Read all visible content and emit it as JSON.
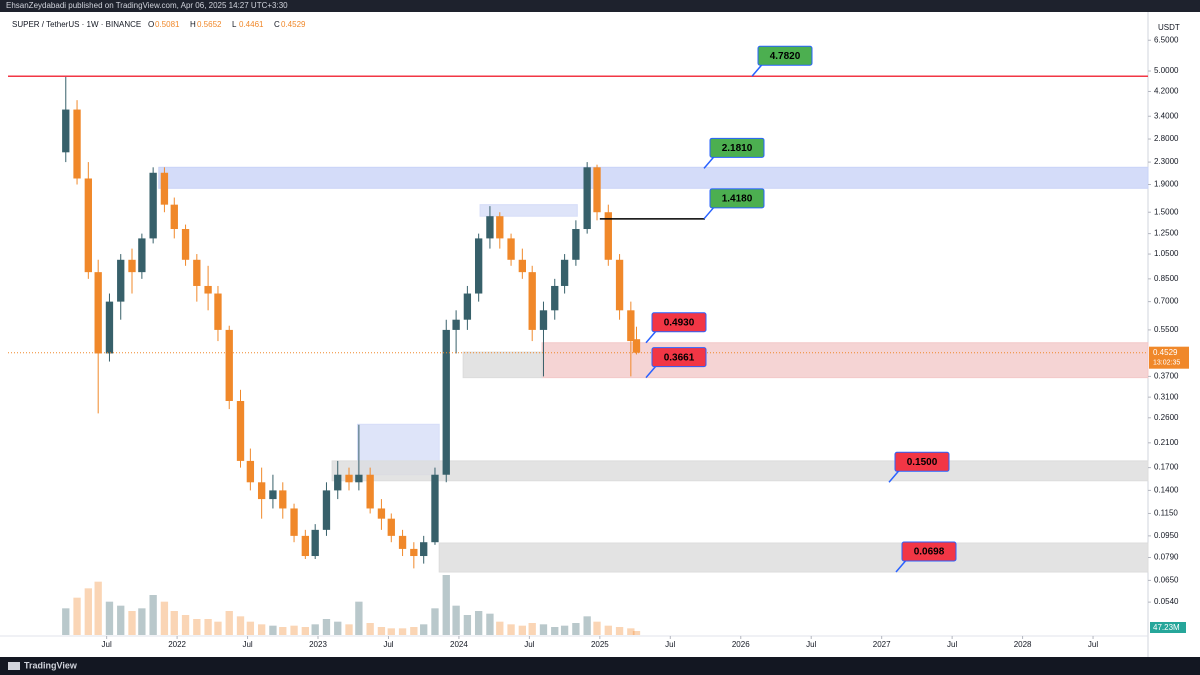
{
  "chart_data": {
    "type": "candlestick",
    "published": "EhsanZeydabadi published on TradingView.com, Apr 06, 2025 14:27 UTC+3:30",
    "title": "SUPER / TetherUS · 1W · BINANCE",
    "ohlc_keys": [
      "O",
      "H",
      "L",
      "C"
    ],
    "currency": "USDT",
    "countdown": "13:02:35",
    "volume_label": "47.23M",
    "brand": "TradingView",
    "log_scale": true,
    "up_color": "#37606a",
    "down_color": "#f0882a",
    "ylim": [
      0.0408,
      8.27
    ],
    "yticks": [
      {
        "value": 6.5,
        "label": "6.5000"
      },
      {
        "value": 5,
        "label": "5.0000"
      },
      {
        "value": 4.2,
        "label": "4.2000"
      },
      {
        "value": 3.4,
        "label": "3.4000"
      },
      {
        "value": 2.8,
        "label": "2.8000"
      },
      {
        "value": 2.3,
        "label": "2.3000"
      },
      {
        "value": 1.9,
        "label": "1.9000"
      },
      {
        "value": 1.5,
        "label": "1.5000"
      },
      {
        "value": 1.25,
        "label": "1.2500"
      },
      {
        "value": 1.05,
        "label": "1.0500"
      },
      {
        "value": 0.85,
        "label": "0.8500"
      },
      {
        "value": 0.7,
        "label": "0.7000"
      },
      {
        "value": 0.55,
        "label": "0.5500"
      },
      {
        "value": 0.37,
        "label": "0.3700"
      },
      {
        "value": 0.31,
        "label": "0.3100"
      },
      {
        "value": 0.26,
        "label": "0.2600"
      },
      {
        "value": 0.21,
        "label": "0.2100"
      },
      {
        "value": 0.17,
        "label": "0.1700"
      },
      {
        "value": 0.14,
        "label": "0.1400"
      },
      {
        "value": 0.115,
        "label": "0.1150"
      },
      {
        "value": 0.095,
        "label": "0.0950"
      },
      {
        "value": 0.079,
        "label": "0.0790"
      },
      {
        "value": 0.065,
        "label": "0.0650"
      },
      {
        "value": 0.054,
        "label": "0.0540"
      }
    ],
    "xlim": [
      2020.8,
      2028.89
    ],
    "xticks": [
      {
        "value": 2021.5,
        "label": "Jul"
      },
      {
        "value": 2022,
        "label": "2022"
      },
      {
        "value": 2022.5,
        "label": "Jul"
      },
      {
        "value": 2023,
        "label": "2023"
      },
      {
        "value": 2023.5,
        "label": "Jul"
      },
      {
        "value": 2024,
        "label": "2024"
      },
      {
        "value": 2024.5,
        "label": "Jul"
      },
      {
        "value": 2025,
        "label": "2025"
      },
      {
        "value": 2025.5,
        "label": "Jul"
      },
      {
        "value": 2026,
        "label": "2026"
      },
      {
        "value": 2026.5,
        "label": "Jul"
      },
      {
        "value": 2027,
        "label": "2027"
      },
      {
        "value": 2027.5,
        "label": "Jul"
      },
      {
        "value": 2028,
        "label": "2028"
      },
      {
        "value": 2028.5,
        "label": "Jul"
      }
    ],
    "candles": [
      {
        "x": 2021.21,
        "open": 2.5,
        "high": 4.78,
        "low": 2.3,
        "close": 3.6,
        "volume": 20
      },
      {
        "x": 2021.29,
        "open": 3.6,
        "high": 3.9,
        "low": 1.9,
        "close": 2.0,
        "volume": 28
      },
      {
        "x": 2021.37,
        "open": 2.0,
        "high": 2.3,
        "low": 0.85,
        "close": 0.9,
        "volume": 35
      },
      {
        "x": 2021.44,
        "open": 0.9,
        "high": 1.0,
        "low": 0.27,
        "close": 0.45,
        "volume": 40
      },
      {
        "x": 2021.52,
        "open": 0.45,
        "high": 0.75,
        "low": 0.42,
        "close": 0.7,
        "volume": 25
      },
      {
        "x": 2021.6,
        "open": 0.7,
        "high": 1.05,
        "low": 0.6,
        "close": 1.0,
        "volume": 22
      },
      {
        "x": 2021.68,
        "open": 1.0,
        "high": 1.1,
        "low": 0.75,
        "close": 0.9,
        "volume": 18
      },
      {
        "x": 2021.75,
        "open": 0.9,
        "high": 1.25,
        "low": 0.85,
        "close": 1.2,
        "volume": 20
      },
      {
        "x": 2021.83,
        "open": 1.2,
        "high": 2.2,
        "low": 1.15,
        "close": 2.1,
        "volume": 30
      },
      {
        "x": 2021.91,
        "open": 2.1,
        "high": 2.2,
        "low": 1.5,
        "close": 1.6,
        "volume": 25
      },
      {
        "x": 2021.98,
        "open": 1.6,
        "high": 1.7,
        "low": 1.2,
        "close": 1.3,
        "volume": 18
      },
      {
        "x": 2022.06,
        "open": 1.3,
        "high": 1.35,
        "low": 0.95,
        "close": 1.0,
        "volume": 15
      },
      {
        "x": 2022.14,
        "open": 1.0,
        "high": 1.05,
        "low": 0.7,
        "close": 0.8,
        "volume": 12
      },
      {
        "x": 2022.22,
        "open": 0.8,
        "high": 0.95,
        "low": 0.65,
        "close": 0.75,
        "volume": 12
      },
      {
        "x": 2022.29,
        "open": 0.75,
        "high": 0.8,
        "low": 0.5,
        "close": 0.55,
        "volume": 10
      },
      {
        "x": 2022.37,
        "open": 0.55,
        "high": 0.57,
        "low": 0.28,
        "close": 0.3,
        "volume": 18
      },
      {
        "x": 2022.45,
        "open": 0.3,
        "high": 0.33,
        "low": 0.17,
        "close": 0.18,
        "volume": 14
      },
      {
        "x": 2022.52,
        "open": 0.18,
        "high": 0.2,
        "low": 0.14,
        "close": 0.15,
        "volume": 10
      },
      {
        "x": 2022.6,
        "open": 0.15,
        "high": 0.17,
        "low": 0.11,
        "close": 0.13,
        "volume": 8
      },
      {
        "x": 2022.68,
        "open": 0.13,
        "high": 0.16,
        "low": 0.12,
        "close": 0.14,
        "volume": 7
      },
      {
        "x": 2022.75,
        "open": 0.14,
        "high": 0.15,
        "low": 0.11,
        "close": 0.12,
        "volume": 6
      },
      {
        "x": 2022.83,
        "open": 0.12,
        "high": 0.125,
        "low": 0.09,
        "close": 0.095,
        "volume": 7
      },
      {
        "x": 2022.91,
        "open": 0.095,
        "high": 0.1,
        "low": 0.078,
        "close": 0.08,
        "volume": 6
      },
      {
        "x": 2022.98,
        "open": 0.08,
        "high": 0.105,
        "low": 0.078,
        "close": 0.1,
        "volume": 8
      },
      {
        "x": 2023.06,
        "open": 0.1,
        "high": 0.15,
        "low": 0.095,
        "close": 0.14,
        "volume": 12
      },
      {
        "x": 2023.14,
        "open": 0.14,
        "high": 0.18,
        "low": 0.13,
        "close": 0.16,
        "volume": 10
      },
      {
        "x": 2023.22,
        "open": 0.16,
        "high": 0.17,
        "low": 0.14,
        "close": 0.15,
        "volume": 8
      },
      {
        "x": 2023.29,
        "open": 0.15,
        "high": 0.245,
        "low": 0.14,
        "close": 0.16,
        "volume": 25
      },
      {
        "x": 2023.37,
        "open": 0.16,
        "high": 0.17,
        "low": 0.115,
        "close": 0.12,
        "volume": 9
      },
      {
        "x": 2023.45,
        "open": 0.12,
        "high": 0.13,
        "low": 0.1,
        "close": 0.11,
        "volume": 6
      },
      {
        "x": 2023.52,
        "open": 0.11,
        "high": 0.115,
        "low": 0.09,
        "close": 0.095,
        "volume": 5
      },
      {
        "x": 2023.6,
        "open": 0.095,
        "high": 0.1,
        "low": 0.08,
        "close": 0.085,
        "volume": 5
      },
      {
        "x": 2023.68,
        "open": 0.085,
        "high": 0.09,
        "low": 0.072,
        "close": 0.08,
        "volume": 6
      },
      {
        "x": 2023.75,
        "open": 0.08,
        "high": 0.095,
        "low": 0.075,
        "close": 0.09,
        "volume": 8
      },
      {
        "x": 2023.83,
        "open": 0.09,
        "high": 0.17,
        "low": 0.088,
        "close": 0.16,
        "volume": 20
      },
      {
        "x": 2023.91,
        "open": 0.16,
        "high": 0.6,
        "low": 0.15,
        "close": 0.55,
        "volume": 45
      },
      {
        "x": 2023.98,
        "open": 0.55,
        "high": 0.65,
        "low": 0.45,
        "close": 0.6,
        "volume": 22
      },
      {
        "x": 2024.06,
        "open": 0.6,
        "high": 0.8,
        "low": 0.55,
        "close": 0.75,
        "volume": 15
      },
      {
        "x": 2024.14,
        "open": 0.75,
        "high": 1.25,
        "low": 0.7,
        "close": 1.2,
        "volume": 18
      },
      {
        "x": 2024.22,
        "open": 1.2,
        "high": 1.58,
        "low": 1.1,
        "close": 1.45,
        "volume": 16
      },
      {
        "x": 2024.29,
        "open": 1.45,
        "high": 1.5,
        "low": 1.1,
        "close": 1.2,
        "volume": 10
      },
      {
        "x": 2024.37,
        "open": 1.2,
        "high": 1.25,
        "low": 0.95,
        "close": 1.0,
        "volume": 8
      },
      {
        "x": 2024.45,
        "open": 1.0,
        "high": 1.1,
        "low": 0.85,
        "close": 0.9,
        "volume": 7
      },
      {
        "x": 2024.52,
        "open": 0.9,
        "high": 0.95,
        "low": 0.5,
        "close": 0.55,
        "volume": 9
      },
      {
        "x": 2024.6,
        "open": 0.55,
        "high": 0.7,
        "low": 0.37,
        "close": 0.65,
        "volume": 8
      },
      {
        "x": 2024.68,
        "open": 0.65,
        "high": 0.85,
        "low": 0.6,
        "close": 0.8,
        "volume": 6
      },
      {
        "x": 2024.75,
        "open": 0.8,
        "high": 1.05,
        "low": 0.75,
        "close": 1.0,
        "volume": 7
      },
      {
        "x": 2024.83,
        "open": 1.0,
        "high": 1.4,
        "low": 0.95,
        "close": 1.3,
        "volume": 9
      },
      {
        "x": 2024.91,
        "open": 1.3,
        "high": 2.3,
        "low": 1.25,
        "close": 2.2,
        "volume": 14
      },
      {
        "x": 2024.98,
        "open": 2.2,
        "high": 2.25,
        "low": 1.4,
        "close": 1.5,
        "volume": 10
      },
      {
        "x": 2025.06,
        "open": 1.5,
        "high": 1.6,
        "low": 0.95,
        "close": 1.0,
        "volume": 7
      },
      {
        "x": 2025.14,
        "open": 1.0,
        "high": 1.05,
        "low": 0.6,
        "close": 0.65,
        "volume": 6
      },
      {
        "x": 2025.22,
        "open": 0.65,
        "high": 0.7,
        "low": 0.37,
        "close": 0.5,
        "volume": 5
      },
      {
        "x": 2025.26,
        "open": 0.5081,
        "high": 0.5652,
        "low": 0.4461,
        "close": 0.4529,
        "volume": 3
      }
    ],
    "zones": [
      {
        "x0": 2021.87,
        "x1": 2028.89,
        "top": 2.2,
        "bottom": 1.84,
        "color": "#c9d3f7"
      },
      {
        "x0": 2024.15,
        "x1": 2024.84,
        "top": 1.6,
        "bottom": 1.45,
        "color": "#d6ddf8"
      },
      {
        "x0": 2024.59,
        "x1": 2028.89,
        "top": 0.493,
        "bottom": 0.3661,
        "color": "#f3c9c9"
      },
      {
        "x0": 2024.03,
        "x1": 2024.59,
        "top": 0.455,
        "bottom": 0.3661,
        "color": "#dcdcdc"
      },
      {
        "x0": 2023.28,
        "x1": 2023.86,
        "top": 0.246,
        "bottom": 0.16,
        "color": "#d6ddf8"
      },
      {
        "x0": 2023.1,
        "x1": 2028.89,
        "top": 0.18,
        "bottom": 0.152,
        "color": "#dcdcdc"
      },
      {
        "x0": 2023.86,
        "x1": 2028.89,
        "top": 0.0894,
        "bottom": 0.0698,
        "color": "#dcdcdc"
      }
    ],
    "levels": [
      {
        "value": 4.782,
        "label": "4.7820",
        "color": "#4caf50"
      },
      {
        "value": 2.181,
        "label": "2.1810",
        "color": "#4caf50"
      },
      {
        "value": 1.418,
        "label": "1.4180",
        "color": "#4caf50"
      },
      {
        "value": 0.493,
        "label": "0.4930",
        "color": "#f23645"
      },
      {
        "value": 0.3661,
        "label": "0.3661",
        "color": "#f23645"
      },
      {
        "value": 0.15,
        "label": "0.1500",
        "color": "#f23645"
      },
      {
        "value": 0.0698,
        "label": "0.0698",
        "color": "#f23645"
      }
    ]
  }
}
